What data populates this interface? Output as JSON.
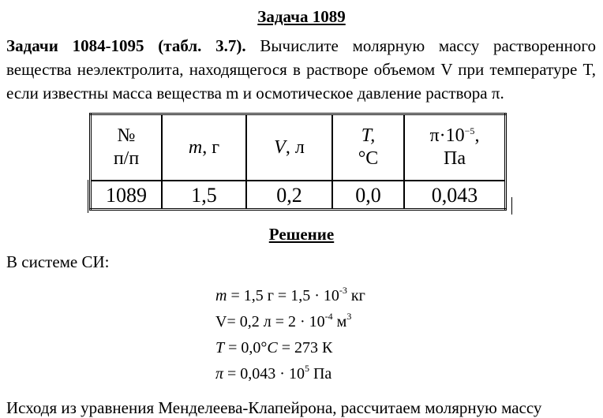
{
  "title": "Задача 1089",
  "problem": {
    "lead": "Задачи 1084-1095 (табл. 3.7).",
    "text": " Вычислите молярную массу растворенного вещества неэлектролита, находящегося в растворе объемом V при температуре T, если известны масса вещества m и осмотическое давление раствора π."
  },
  "table": {
    "headers": [
      {
        "l1": "№",
        "l2": "п/п"
      },
      {
        "var": "m",
        "unit": ", г"
      },
      {
        "var": "V",
        "unit": ", л"
      },
      {
        "l1": "T,",
        "l2": "°С"
      },
      {
        "l1a": "π·10",
        "l1sup": "−5",
        "l1b": ",",
        "l2": "Па"
      }
    ],
    "row": [
      "1089",
      "1,5",
      "0,2",
      "0,0",
      "0,043"
    ]
  },
  "solution_title": "Решение",
  "si_label": "В системе СИ:",
  "formulas": [
    {
      "a": "m",
      "b": " = 1,5 г  = 1,5 · 10",
      "sup": "-3",
      "c": "  кг"
    },
    {
      "a": "",
      "b": "V= 0,2 л = 2 · 10",
      "sup": "-4",
      "c": "  м",
      "sup2": "3"
    },
    {
      "a": "T",
      "b": " = 0,0°",
      "c2": "C",
      "c": " = 273 К"
    },
    {
      "a": "π",
      "b": " = 0,043 · 10",
      "sup": "5",
      "c": "  Па"
    }
  ],
  "next_line": "Исходя из уравнения Менделеева-Клапейрона, рассчитаем молярную массу"
}
